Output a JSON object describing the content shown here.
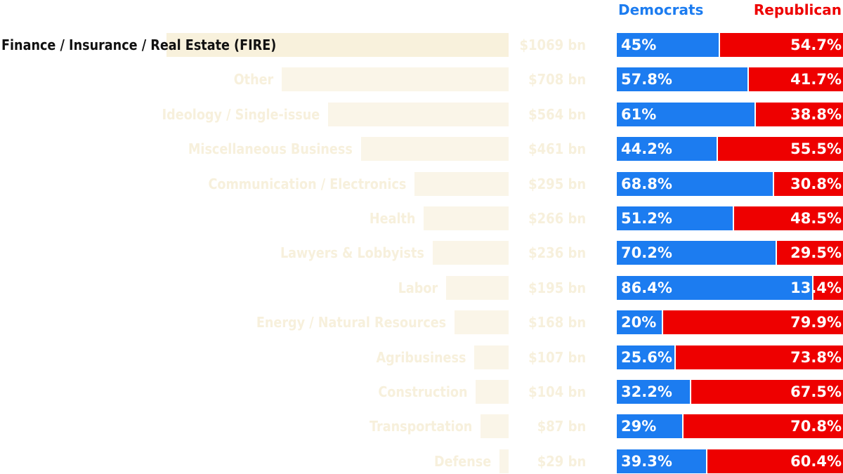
{
  "colors": {
    "democrats": "#1c7cf0",
    "republican": "#ee0000",
    "total_bar": "#faf5e8",
    "highlight_bar": "#f8f1dc",
    "faded_text": "#f7f0dc",
    "active_text": "#111111",
    "percent_text": "#ffffff"
  },
  "chart_data": {
    "type": "bar",
    "legend": {
      "democrats": "Democrats",
      "republican": "Republican"
    },
    "highlighted_category": "Finance / Insurance / Real Estate (FIRE)",
    "categories": [
      "Finance / Insurance / Real Estate (FIRE)",
      "Other",
      "Ideology / Single-issue",
      "Miscellaneous Business",
      "Communication / Electronics",
      "Health",
      "Lawyers & Lobbyists",
      "Labor",
      "Energy / Natural Resources",
      "Agribusiness",
      "Construction",
      "Transportation",
      "Defense"
    ],
    "totals": [
      1069,
      708,
      564,
      461,
      295,
      266,
      236,
      195,
      168,
      107,
      104,
      87,
      29
    ],
    "total_labels": [
      "$1069 bn",
      "$708 bn",
      "$564 bn",
      "$461 bn",
      "$295 bn",
      "$266 bn",
      "$236 bn",
      "$195 bn",
      "$168 bn",
      "$107 bn",
      "$104 bn",
      "$87 bn",
      "$29 bn"
    ],
    "series": [
      {
        "name": "Democrats",
        "values": [
          45,
          57.8,
          61,
          44.2,
          68.8,
          51.2,
          70.2,
          86.4,
          20,
          25.6,
          32.2,
          29,
          39.3
        ],
        "labels": [
          "45%",
          "57.8%",
          "61%",
          "44.2%",
          "68.8%",
          "51.2%",
          "70.2%",
          "86.4%",
          "20%",
          "25.6%",
          "32.2%",
          "29%",
          "39.3%"
        ]
      },
      {
        "name": "Republican",
        "values": [
          54.7,
          41.7,
          38.8,
          55.5,
          30.8,
          48.5,
          29.5,
          13.4,
          79.9,
          73.8,
          67.5,
          70.8,
          60.4
        ],
        "labels": [
          "54.7%",
          "41.7%",
          "38.8%",
          "55.5%",
          "30.8%",
          "48.5%",
          "29.5%",
          "13.4%",
          "79.9%",
          "73.8%",
          "67.5%",
          "70.8%",
          "60.4%"
        ]
      }
    ]
  }
}
